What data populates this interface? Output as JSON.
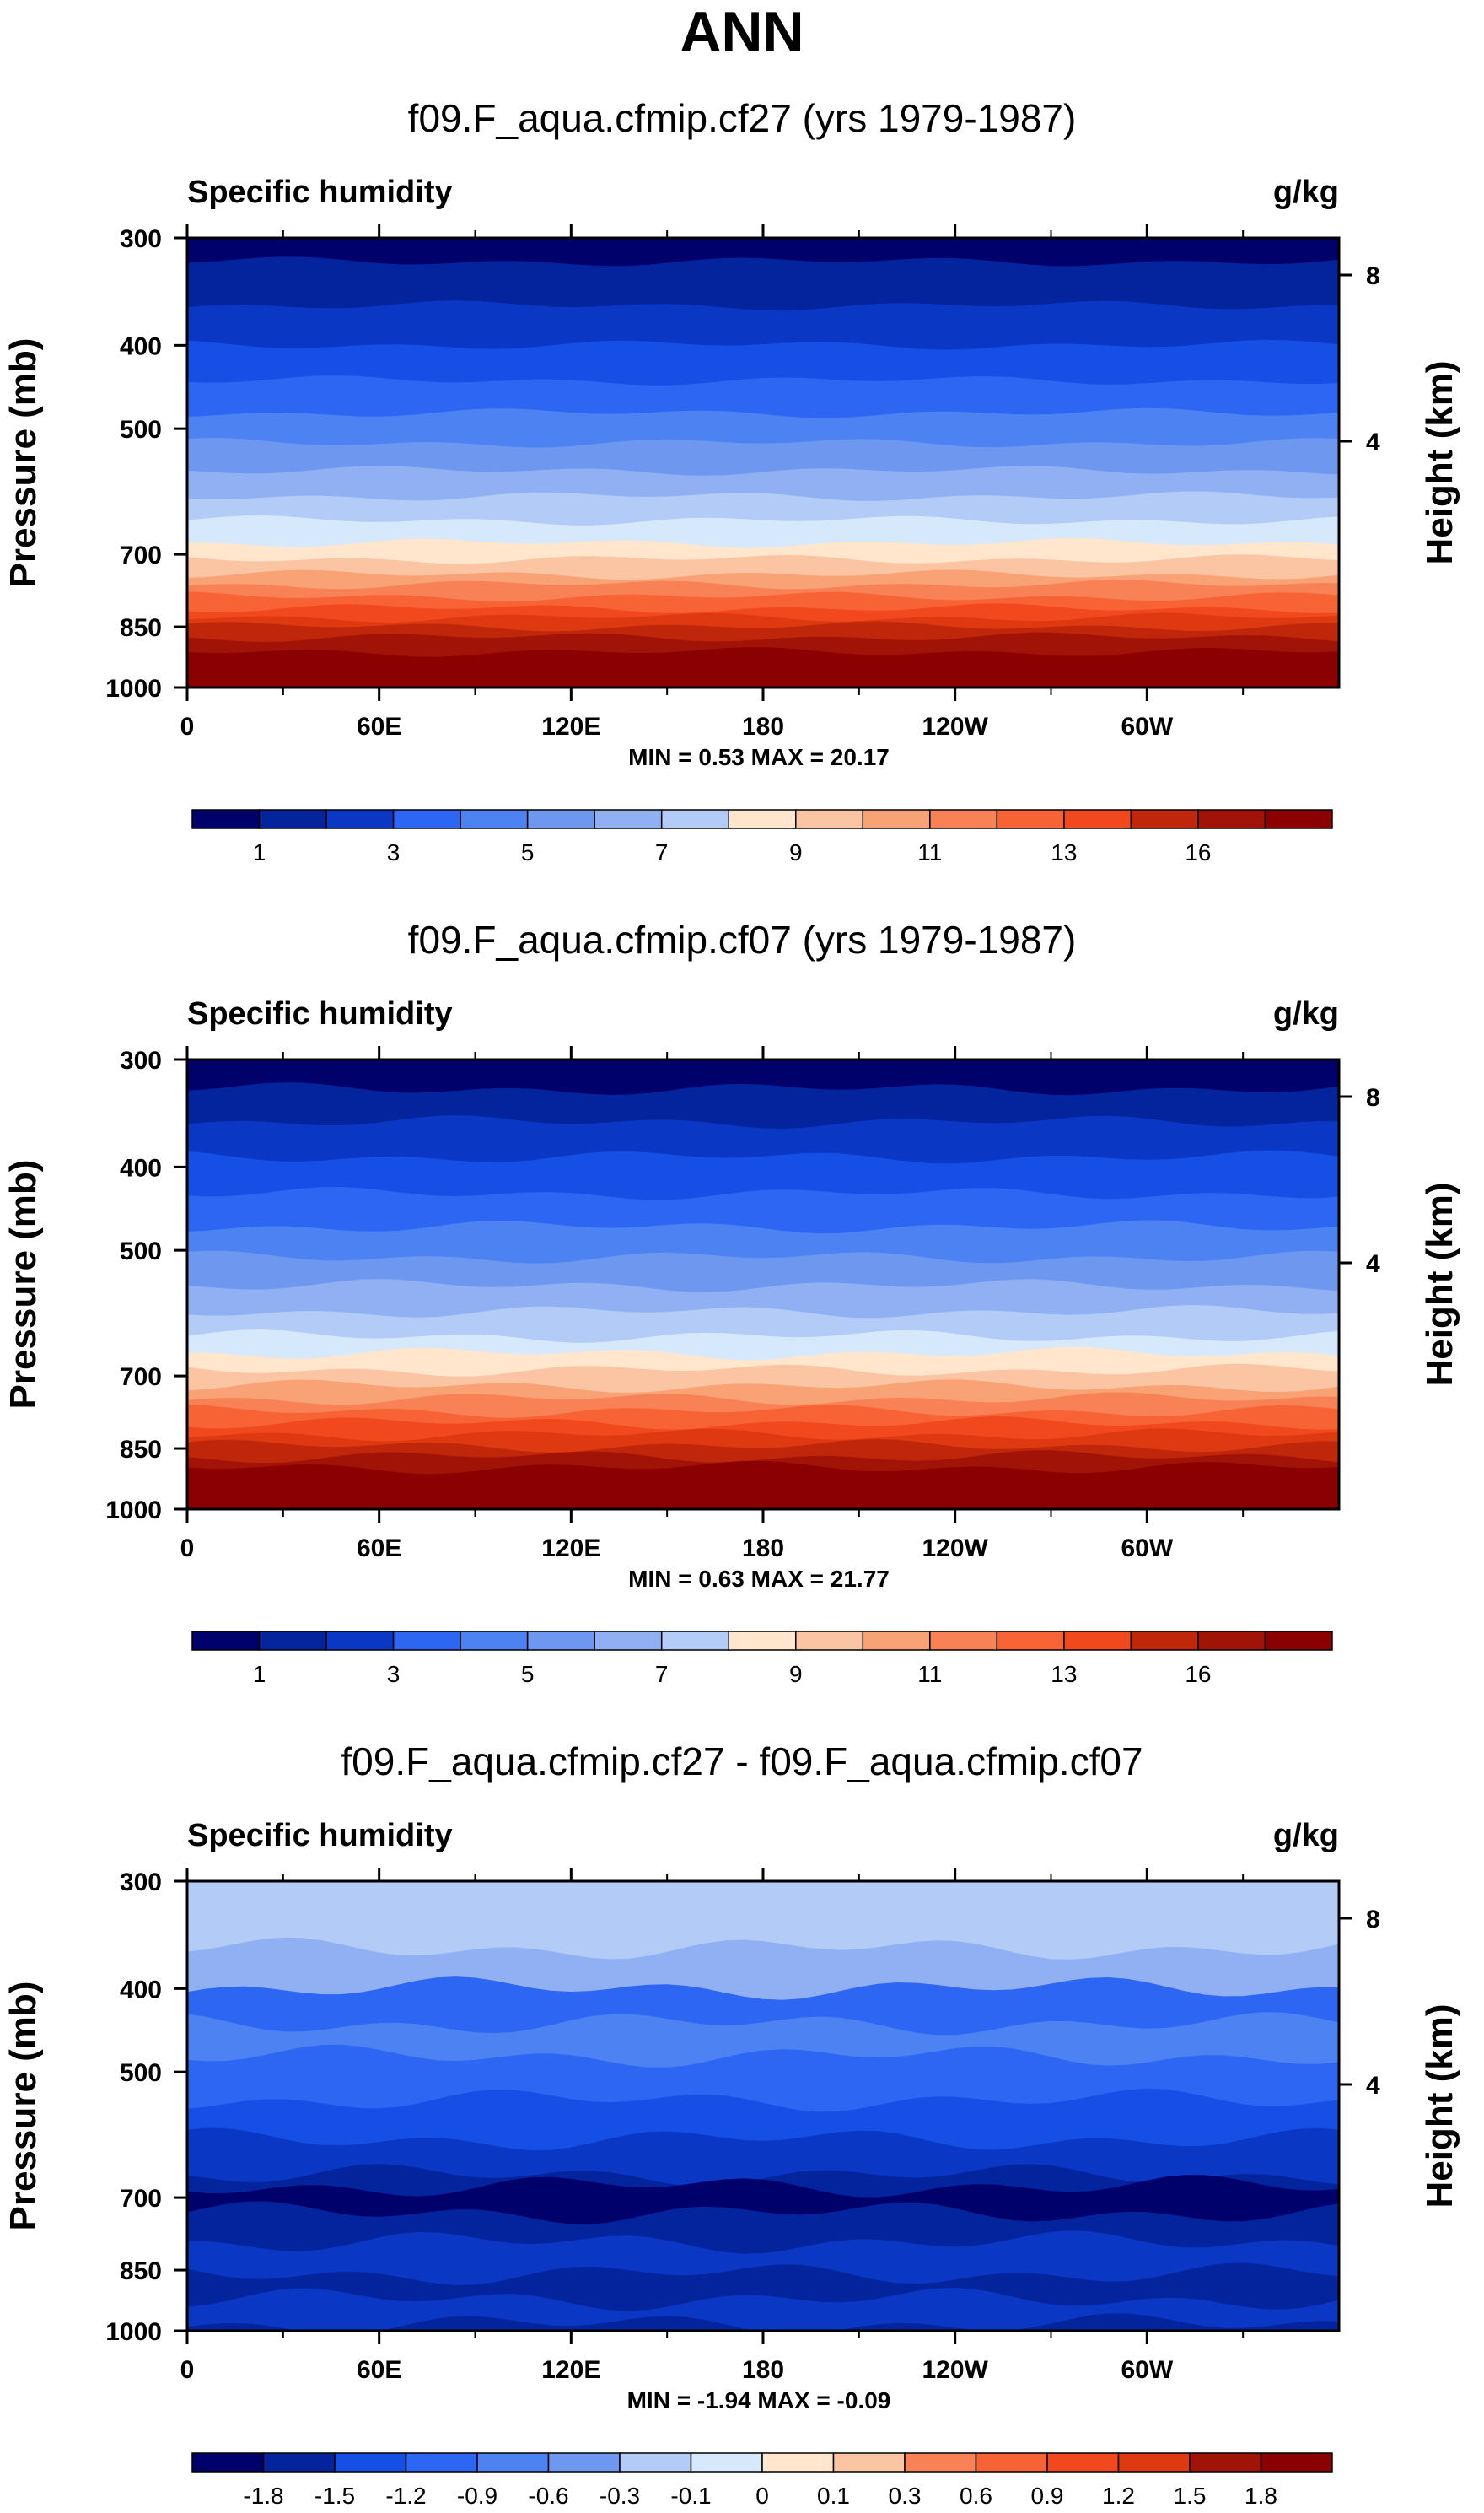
{
  "figure": {
    "title": "ANN"
  },
  "chart_data": [
    {
      "type": "heatmap",
      "title": "f09.F_aqua.cfmip.cf27 (yrs 1979-1987)",
      "variable": "Specific humidity",
      "units": "g/kg",
      "ylabel": "Pressure (mb)",
      "ylabel_right": "Height (km)",
      "x_ticks": [
        "0",
        "60E",
        "120E",
        "180",
        "120W",
        "60W"
      ],
      "y_ticks": [
        300,
        400,
        500,
        700,
        850,
        1000
      ],
      "y_right_ticks": [
        8,
        4
      ],
      "ylim": [
        300,
        1000
      ],
      "stats": "MIN =   0.53  MAX =  20.17",
      "contour_levels": [
        0.5,
        1,
        2,
        3,
        4,
        5,
        6,
        7,
        8,
        9,
        10,
        11,
        12,
        13,
        14,
        16
      ],
      "colorbar_labels": [
        "1",
        "3",
        "5",
        "7",
        "9",
        "11",
        "13",
        "16"
      ],
      "colorbar_label_positions": [
        1,
        3,
        5,
        7,
        9,
        11,
        13,
        15
      ],
      "band_bounds_mb": [
        300,
        320,
        360,
        400,
        440,
        480,
        520,
        560,
        600,
        640,
        680,
        710,
        740,
        760,
        785,
        810,
        830,
        850,
        875,
        910,
        1000
      ],
      "band_colors": [
        "#01016c",
        "#04249e",
        "#0a38c4",
        "#164fe6",
        "#2c66f2",
        "#4d82f2",
        "#6e97f0",
        "#90b0f3",
        "#b2cbf7",
        "#d6e8fb",
        "#ffe6cc",
        "#fbc4a2",
        "#f8a275",
        "#f88156",
        "#f76335",
        "#f1491d",
        "#de3911",
        "#c0260a",
        "#a21307",
        "#8b0000"
      ],
      "band_wave": 6
    },
    {
      "type": "heatmap",
      "title": "f09.F_aqua.cfmip.cf07 (yrs 1979-1987)",
      "variable": "Specific humidity",
      "units": "g/kg",
      "ylabel": "Pressure (mb)",
      "ylabel_right": "Height (km)",
      "x_ticks": [
        "0",
        "60E",
        "120E",
        "180",
        "120W",
        "60W"
      ],
      "y_ticks": [
        300,
        400,
        500,
        700,
        850,
        1000
      ],
      "y_right_ticks": [
        8,
        4
      ],
      "ylim": [
        300,
        1000
      ],
      "stats": "MIN =   0.63  MAX =  21.77",
      "contour_levels": [
        0.5,
        1,
        2,
        3,
        4,
        5,
        6,
        7,
        8,
        9,
        10,
        11,
        12,
        13,
        14,
        16
      ],
      "colorbar_labels": [
        "1",
        "3",
        "5",
        "7",
        "9",
        "11",
        "13",
        "16"
      ],
      "colorbar_label_positions": [
        1,
        3,
        5,
        7,
        9,
        11,
        13,
        15
      ],
      "band_bounds_mb": [
        300,
        325,
        355,
        390,
        430,
        470,
        510,
        550,
        590,
        630,
        660,
        690,
        720,
        745,
        770,
        795,
        820,
        845,
        870,
        895,
        1000
      ],
      "band_colors": [
        "#01016c",
        "#04249e",
        "#0a38c4",
        "#164fe6",
        "#2c66f2",
        "#4d82f2",
        "#6e97f0",
        "#90b0f3",
        "#b2cbf7",
        "#d6e8fb",
        "#ffe6cc",
        "#fbc4a2",
        "#f8a275",
        "#f88156",
        "#f76335",
        "#f1491d",
        "#de3911",
        "#c0260a",
        "#a21307",
        "#8b0000"
      ],
      "band_wave": 8
    },
    {
      "type": "heatmap",
      "title": "f09.F_aqua.cfmip.cf27 - f09.F_aqua.cfmip.cf07",
      "variable": "Specific humidity",
      "units": "g/kg",
      "ylabel": "Pressure (mb)",
      "ylabel_right": "Height (km)",
      "x_ticks": [
        "0",
        "60E",
        "120E",
        "180",
        "120W",
        "60W"
      ],
      "y_ticks": [
        300,
        400,
        500,
        700,
        850,
        1000
      ],
      "y_right_ticks": [
        8,
        4
      ],
      "ylim": [
        300,
        1000
      ],
      "stats": "MIN =  -1.94  MAX =  -0.09",
      "contour_levels": [
        -1.8,
        -1.5,
        -1.2,
        -0.9,
        -0.6,
        -0.3,
        -0.1,
        0,
        0.1,
        0.3,
        0.6,
        0.9,
        1.2,
        1.5,
        1.8
      ],
      "colorbar_labels": [
        "-1.8",
        "-1.5",
        "-1.2",
        "-0.9",
        "-0.6",
        "-0.3",
        "-0.1",
        "0",
        "0.1",
        "0.3",
        "0.6",
        "0.9",
        "1.2",
        "1.5",
        "1.8"
      ],
      "colorbar_label_positions": [
        1,
        2,
        3,
        4,
        5,
        6,
        7,
        8,
        9,
        10,
        11,
        12,
        13,
        14,
        15
      ],
      "band_bounds_mb": [
        300,
        360,
        400,
        440,
        480,
        540,
        600,
        660,
        680,
        730,
        790,
        860,
        920,
        985,
        1000
      ],
      "band_colors": [
        "#b2cbf7",
        "#90b0f3",
        "#2c66f2",
        "#4d82f2",
        "#2c66f2",
        "#164fe6",
        "#0a38c4",
        "#04249e",
        "#01016c",
        "#04249e",
        "#0a38c4",
        "#04249e",
        "#0a38c4",
        "#04249e"
      ],
      "band_wave": 14,
      "colorbar_colors": [
        "#01016c",
        "#04249e",
        "#0a38c4",
        "#164fe6",
        "#2c66f2",
        "#4d82f2",
        "#6e97f0",
        "#90b0f3",
        "#b2cbf7",
        "#d6e8fb",
        "#ffe6cc",
        "#fbc4a2",
        "#f8a275",
        "#f88156",
        "#f76335",
        "#f1491d",
        "#de3911",
        "#c0260a",
        "#a21307",
        "#8b0000"
      ]
    }
  ]
}
